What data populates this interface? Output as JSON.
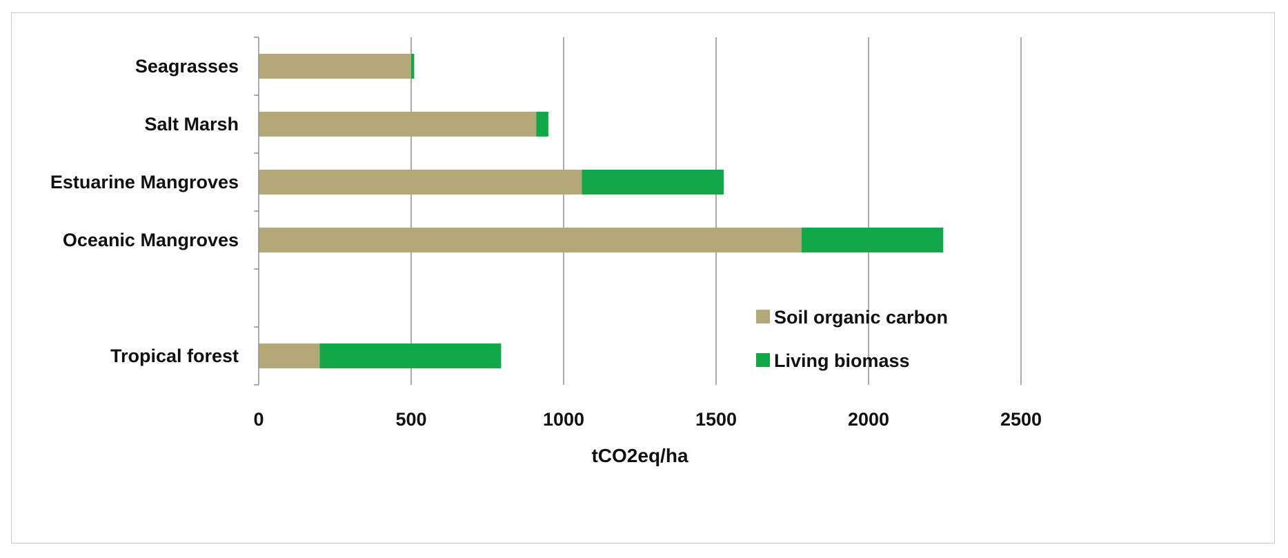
{
  "colors": {
    "soil": "#b5a878",
    "living": "#11a84a",
    "grid": "#8f8f8f",
    "axis": "#8f8f8f",
    "text": "#111111"
  },
  "chart_data": {
    "type": "bar",
    "orientation": "horizontal",
    "stacked": true,
    "categories": [
      "Seagrasses",
      "Salt Marsh",
      "Estuarine Mangroves",
      "Oceanic Mangroves",
      "Tropical forest"
    ],
    "series": [
      {
        "name": "Soil organic carbon",
        "color": "#b5a878",
        "values": [
          500,
          910,
          1060,
          1780,
          200
        ]
      },
      {
        "name": "Living biomass",
        "color": "#11a84a",
        "values": [
          10,
          40,
          465,
          465,
          595
        ]
      }
    ],
    "xlabel": "tCO2eq/ha",
    "ylabel": "",
    "xlim": [
      0,
      2500
    ],
    "xticks": [
      "0",
      "500",
      "1000",
      "1500",
      "2000",
      "2500"
    ],
    "grid": "vertical",
    "legend_position": "bottom-right"
  }
}
